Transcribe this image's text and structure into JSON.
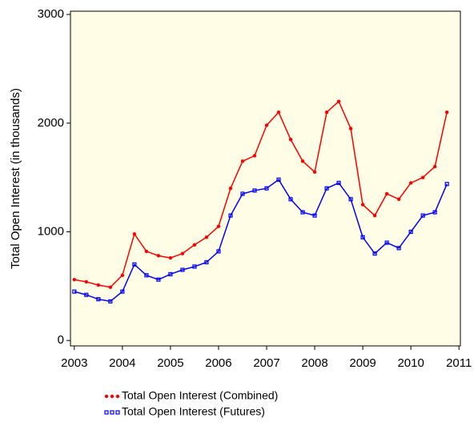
{
  "chart_data": {
    "type": "line",
    "y_label": "Total Open Interest (in thousands)",
    "x": [
      2003.0,
      2003.25,
      2003.5,
      2003.75,
      2004.0,
      2004.25,
      2004.5,
      2004.75,
      2005.0,
      2005.25,
      2005.5,
      2005.75,
      2006.0,
      2006.25,
      2006.5,
      2006.75,
      2007.0,
      2007.25,
      2007.5,
      2007.75,
      2008.0,
      2008.25,
      2008.5,
      2008.75,
      2009.0,
      2009.25,
      2009.5,
      2009.75,
      2010.0,
      2010.25,
      2010.5,
      2010.75
    ],
    "series": [
      {
        "name": "Total Open Interest (Combined)",
        "color": "#ff0000",
        "marker": "circle",
        "values": [
          560,
          540,
          510,
          490,
          600,
          980,
          820,
          780,
          760,
          800,
          880,
          950,
          1050,
          1400,
          1650,
          1700,
          1980,
          2100,
          1850,
          1650,
          1550,
          2100,
          2200,
          1950,
          1250,
          1150,
          1350,
          1300,
          1450,
          1500,
          1600,
          2100
        ]
      },
      {
        "name": "Total Open Interest (Futures)",
        "color": "#0000ff",
        "marker": "square",
        "values": [
          450,
          420,
          380,
          360,
          450,
          700,
          600,
          560,
          610,
          650,
          680,
          720,
          820,
          1150,
          1350,
          1380,
          1400,
          1480,
          1300,
          1180,
          1150,
          1400,
          1450,
          1300,
          950,
          800,
          900,
          850,
          1000,
          1150,
          1180,
          1440
        ]
      }
    ],
    "xlim": [
      2002.92,
      2011.03
    ],
    "xticks": [
      2003,
      2004,
      2005,
      2006,
      2007,
      2008,
      2009,
      2010,
      2011
    ],
    "ylim": [
      -50,
      3030
    ],
    "yticks": [
      0,
      1000,
      2000,
      3000
    ],
    "background": "#fffde6"
  }
}
